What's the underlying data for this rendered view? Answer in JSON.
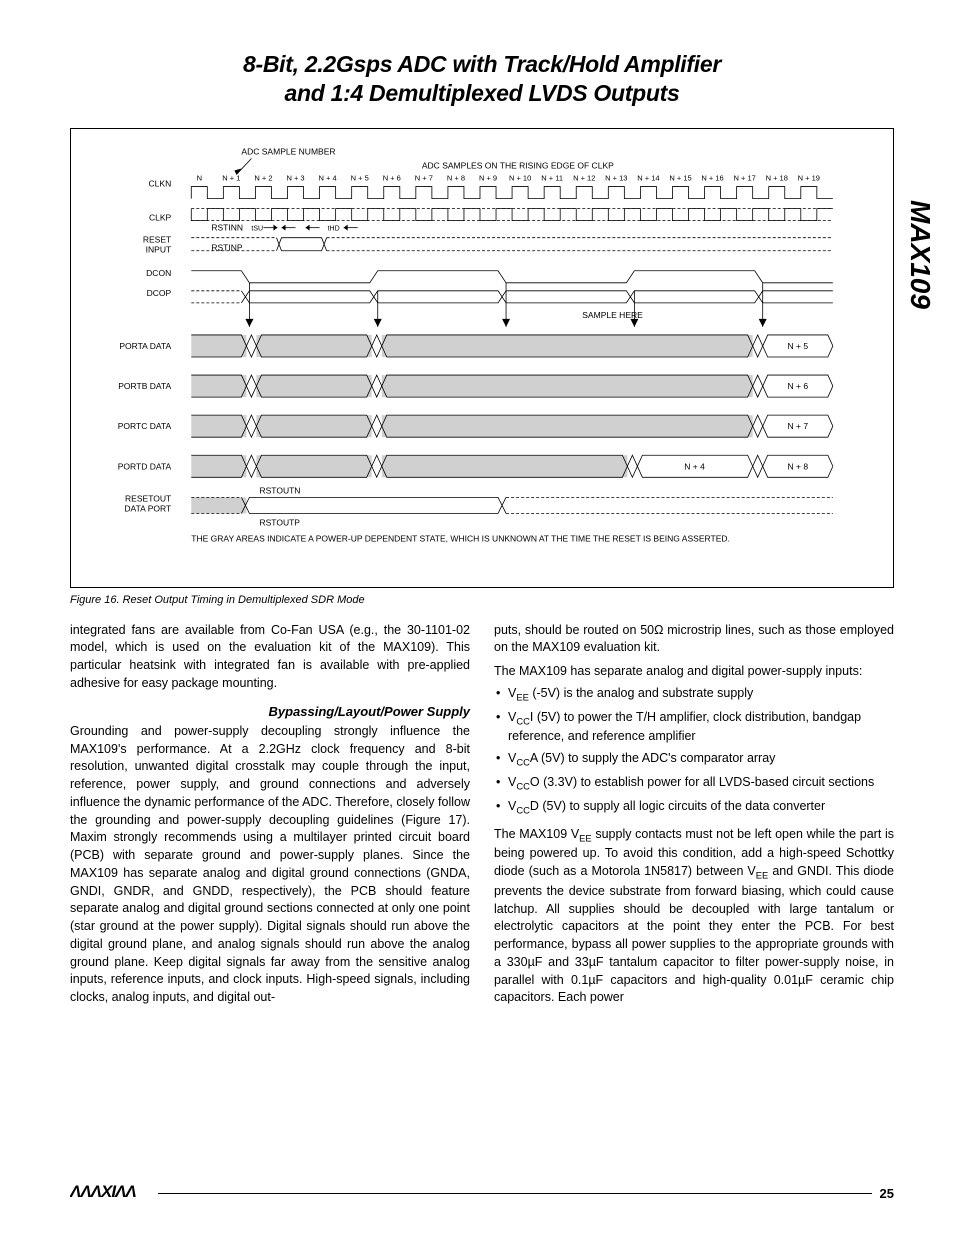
{
  "title": {
    "line1": "8-Bit, 2.2Gsps ADC with Track/Hold Amplifier",
    "line2": "and 1:4 Demultiplexed LVDS Outputs"
  },
  "side_label": "MAX109",
  "figure": {
    "top_label_left": "ADC SAMPLE NUMBER",
    "top_label_right": "ADC SAMPLES ON THE RISING EDGE OF CLKP",
    "signals": {
      "clkn": "CLKN",
      "clkp": "CLKP",
      "reset_input": "RESET\nINPUT",
      "dcon": "DCON",
      "dcop": "DCOP",
      "porta": "PORTA DATA",
      "portb": "PORTB DATA",
      "portc": "PORTC DATA",
      "portd": "PORTD DATA",
      "resetout": "RESETOUT\nDATA PORT"
    },
    "timing_marks": {
      "rstinn": "RSTINN",
      "rstinp": "RSTINP",
      "tsu": "tSU",
      "thd": "tHD",
      "sample_here": "SAMPLE HERE",
      "rstoutn": "RSTOUTN",
      "rstoutp": "RSTOUTP"
    },
    "samples": [
      "N",
      "N + 1",
      "N + 2",
      "N + 3",
      "N + 4",
      "N + 5",
      "N + 6",
      "N + 7",
      "N + 8",
      "N + 9",
      "N + 10",
      "N + 11",
      "N + 12",
      "N + 13",
      "N + 14",
      "N + 15",
      "N + 16",
      "N + 17",
      "N + 18",
      "N + 19"
    ],
    "port_data": {
      "porta_n5": "N + 5",
      "portb_n6": "N + 6",
      "portc_n7": "N + 7",
      "portd_n4": "N + 4",
      "portd_n8": "N + 8"
    },
    "footnote": "THE GRAY AREAS INDICATE A POWER-UP DEPENDENT STATE, WHICH IS UNKNOWN AT THE TIME THE RESET IS BEING ASSERTED.",
    "caption": "Figure 16. Reset Output Timing in Demultiplexed SDR Mode"
  },
  "body": {
    "col1": {
      "p1": "integrated fans are available from Co-Fan USA (e.g., the 30-1101-02 model, which is used on the evaluation kit of the MAX109). This particular heatsink with integrated fan is available with pre-applied adhesive for easy package mounting.",
      "h1": "Bypassing/Layout/Power Supply",
      "p2": "Grounding and power-supply decoupling strongly influence the MAX109's performance. At a 2.2GHz clock frequency and 8-bit resolution, unwanted digital crosstalk may couple through the input, reference, power supply, and ground connections and adversely influence the dynamic performance of the ADC. Therefore, closely follow the grounding and power-supply decoupling guidelines (Figure 17). Maxim strongly recommends using a multilayer printed circuit board (PCB) with separate ground and power-supply planes. Since the MAX109 has separate analog and digital ground connections (GNDA, GNDI, GNDR, and GNDD, respectively), the PCB should feature separate analog and digital ground sections connected at only one point (star ground at the power supply). Digital signals should run above the digital ground plane, and analog signals should run above the analog ground plane. Keep digital signals far away from the sensitive analog inputs, reference inputs, and clock inputs. High-speed signals, including clocks, analog inputs, and digital out-"
    },
    "col2": {
      "p1": "puts, should be routed on 50Ω microstrip lines, such as those employed on the MAX109 evaluation kit.",
      "p2": "The MAX109 has separate analog and digital power-supply inputs:",
      "bullets": [
        "VEE (-5V) is the analog and substrate supply",
        "VCCI (5V) to power the T/H amplifier, clock distribution, bandgap reference, and reference amplifier",
        "VCCA (5V) to supply the ADC's comparator array",
        "VCCO (3.3V) to establish power for all LVDS-based circuit sections",
        "VCCD (5V) to supply all logic circuits of the data converter"
      ],
      "p3": "The MAX109 VEE supply contacts must not be left open while the part is being powered up. To avoid this condition, add a high-speed Schottky diode (such as a Motorola 1N5817) between VEE and GNDI. This diode prevents the device substrate from forward biasing, which could cause latchup. All supplies should be decoupled with large tantalum or electrolytic capacitors at the point they enter the PCB. For best performance, bypass all power supplies to the appropriate grounds with a 330µF and 33µF tantalum capacitor to filter power-supply noise, in parallel with 0.1µF capacitors and high-quality 0.01µF ceramic chip capacitors. Each power"
    }
  },
  "footer": {
    "logo": "MAXIM",
    "page": "25"
  },
  "colors": {
    "text": "#000000",
    "gray_fill": "#d0d0d0",
    "background": "#ffffff"
  }
}
